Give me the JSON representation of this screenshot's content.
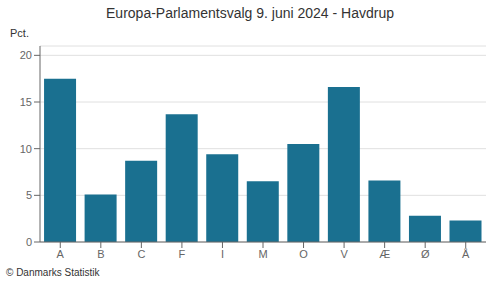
{
  "chart_data": {
    "type": "bar",
    "title": "Europa-Parlamentsvalg 9. juni 2024 - Havdrup",
    "ylabel": "Pct.",
    "footer": "© Danmarks Statistik",
    "categories": [
      "A",
      "B",
      "C",
      "F",
      "I",
      "M",
      "O",
      "V",
      "Æ",
      "Ø",
      "Å"
    ],
    "values": [
      17.5,
      5.1,
      8.7,
      13.7,
      9.4,
      6.5,
      10.5,
      16.6,
      6.6,
      2.8,
      2.3
    ],
    "color": "#1a7090",
    "ylim": [
      0,
      21
    ],
    "yticks": [
      0,
      5,
      10,
      15,
      20
    ],
    "grid": true
  }
}
